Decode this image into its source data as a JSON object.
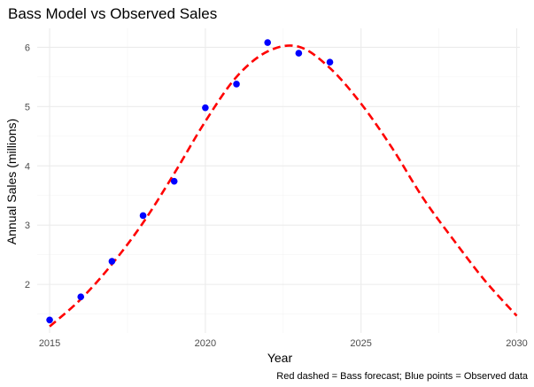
{
  "chart_data": {
    "type": "line",
    "title": "Bass Model vs Observed Sales",
    "xlabel": "Year",
    "ylabel": "Annual Sales (millions)",
    "caption": "Red dashed = Bass forecast; Blue points = Observed data",
    "xlim": [
      2014.6,
      2030.1
    ],
    "ylim": [
      1.18,
      6.32
    ],
    "x_ticks": [
      2015,
      2020,
      2025,
      2030
    ],
    "x_tick_labels": [
      "2015",
      "2020",
      "2025",
      "2030"
    ],
    "y_ticks": [
      2,
      3,
      4,
      5,
      6
    ],
    "y_tick_labels": [
      "2",
      "3",
      "4",
      "5",
      "6"
    ],
    "x_minor_ticks": [
      2017.5,
      2022.5,
      2027.5
    ],
    "y_minor_ticks": [
      1.5,
      2.5,
      3.5,
      4.5,
      5.5
    ],
    "grid": true,
    "series": [
      {
        "kind": "line",
        "style": "dashed",
        "color": "#ff0000",
        "x": [
          2015,
          2016,
          2017,
          2018,
          2019,
          2020,
          2021,
          2022,
          2023,
          2024,
          2025,
          2026,
          2027,
          2028,
          2029,
          2030
        ],
        "values": [
          1.29,
          1.75,
          2.34,
          3.04,
          3.87,
          4.75,
          5.5,
          5.93,
          6.01,
          5.65,
          5.05,
          4.3,
          3.45,
          2.73,
          2.05,
          1.47
        ]
      },
      {
        "kind": "scatter",
        "color": "#0000ff",
        "x": [
          2015,
          2016,
          2017,
          2018,
          2019,
          2020,
          2021,
          2022,
          2023,
          2024
        ],
        "values": [
          1.4,
          1.79,
          2.39,
          3.16,
          3.74,
          4.98,
          5.38,
          6.08,
          5.9,
          5.75
        ]
      }
    ]
  }
}
